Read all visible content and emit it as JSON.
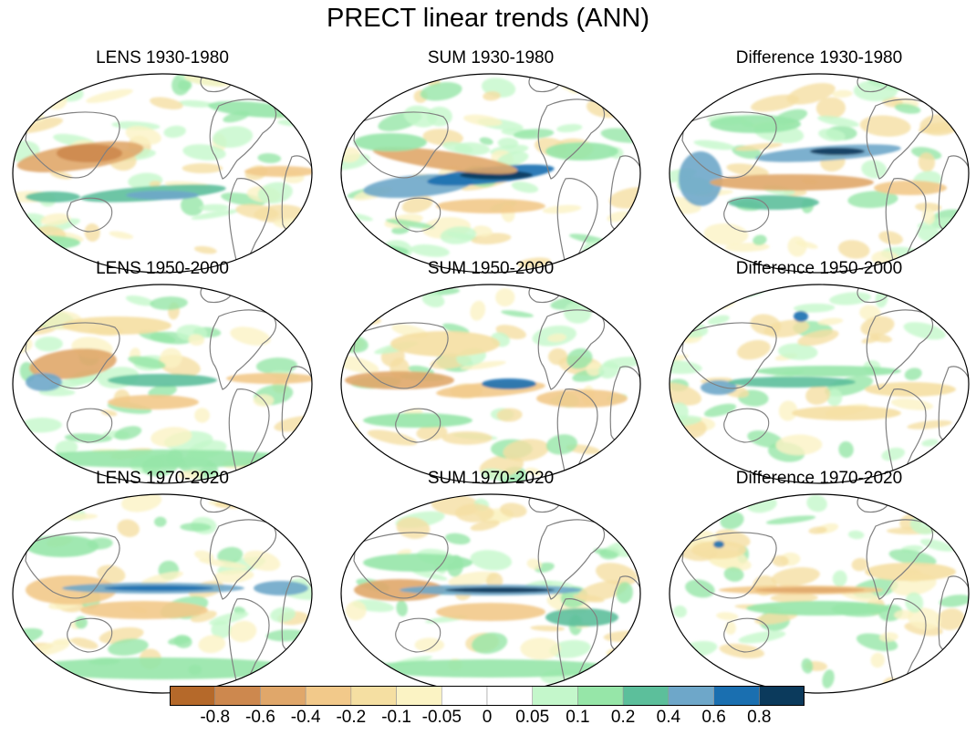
{
  "title": "PRECT linear trends (ANN)",
  "panels": [
    {
      "title": "LENS 1930-1980",
      "pattern": "lens1"
    },
    {
      "title": "SUM 1930-1980",
      "pattern": "sum1"
    },
    {
      "title": "Difference 1930-1980",
      "pattern": "diff1"
    },
    {
      "title": "LENS 1950-2000",
      "pattern": "lens2"
    },
    {
      "title": "SUM 1950-2000",
      "pattern": "sum2"
    },
    {
      "title": "Difference 1950-2000",
      "pattern": "diff2"
    },
    {
      "title": "LENS 1970-2020",
      "pattern": "lens3"
    },
    {
      "title": "SUM 1970-2020",
      "pattern": "sum3"
    },
    {
      "title": "Difference 1970-2020",
      "pattern": "diff3"
    }
  ],
  "colorbar": {
    "labels": [
      "-0.8",
      "-0.6",
      "-0.4",
      "-0.2",
      "-0.1",
      "-0.05",
      "0",
      "0.05",
      "0.1",
      "0.2",
      "0.4",
      "0.6",
      "0.8"
    ],
    "colors": [
      "#b5692a",
      "#cd884e",
      "#e0a76a",
      "#f2c98a",
      "#f5dfa2",
      "#fbf3c4",
      "#ffffff",
      "#ffffff",
      "#c4f7cb",
      "#96e6a8",
      "#5cbf9b",
      "#6ea7c9",
      "#1a6fb0",
      "#0b3a5c"
    ]
  }
}
